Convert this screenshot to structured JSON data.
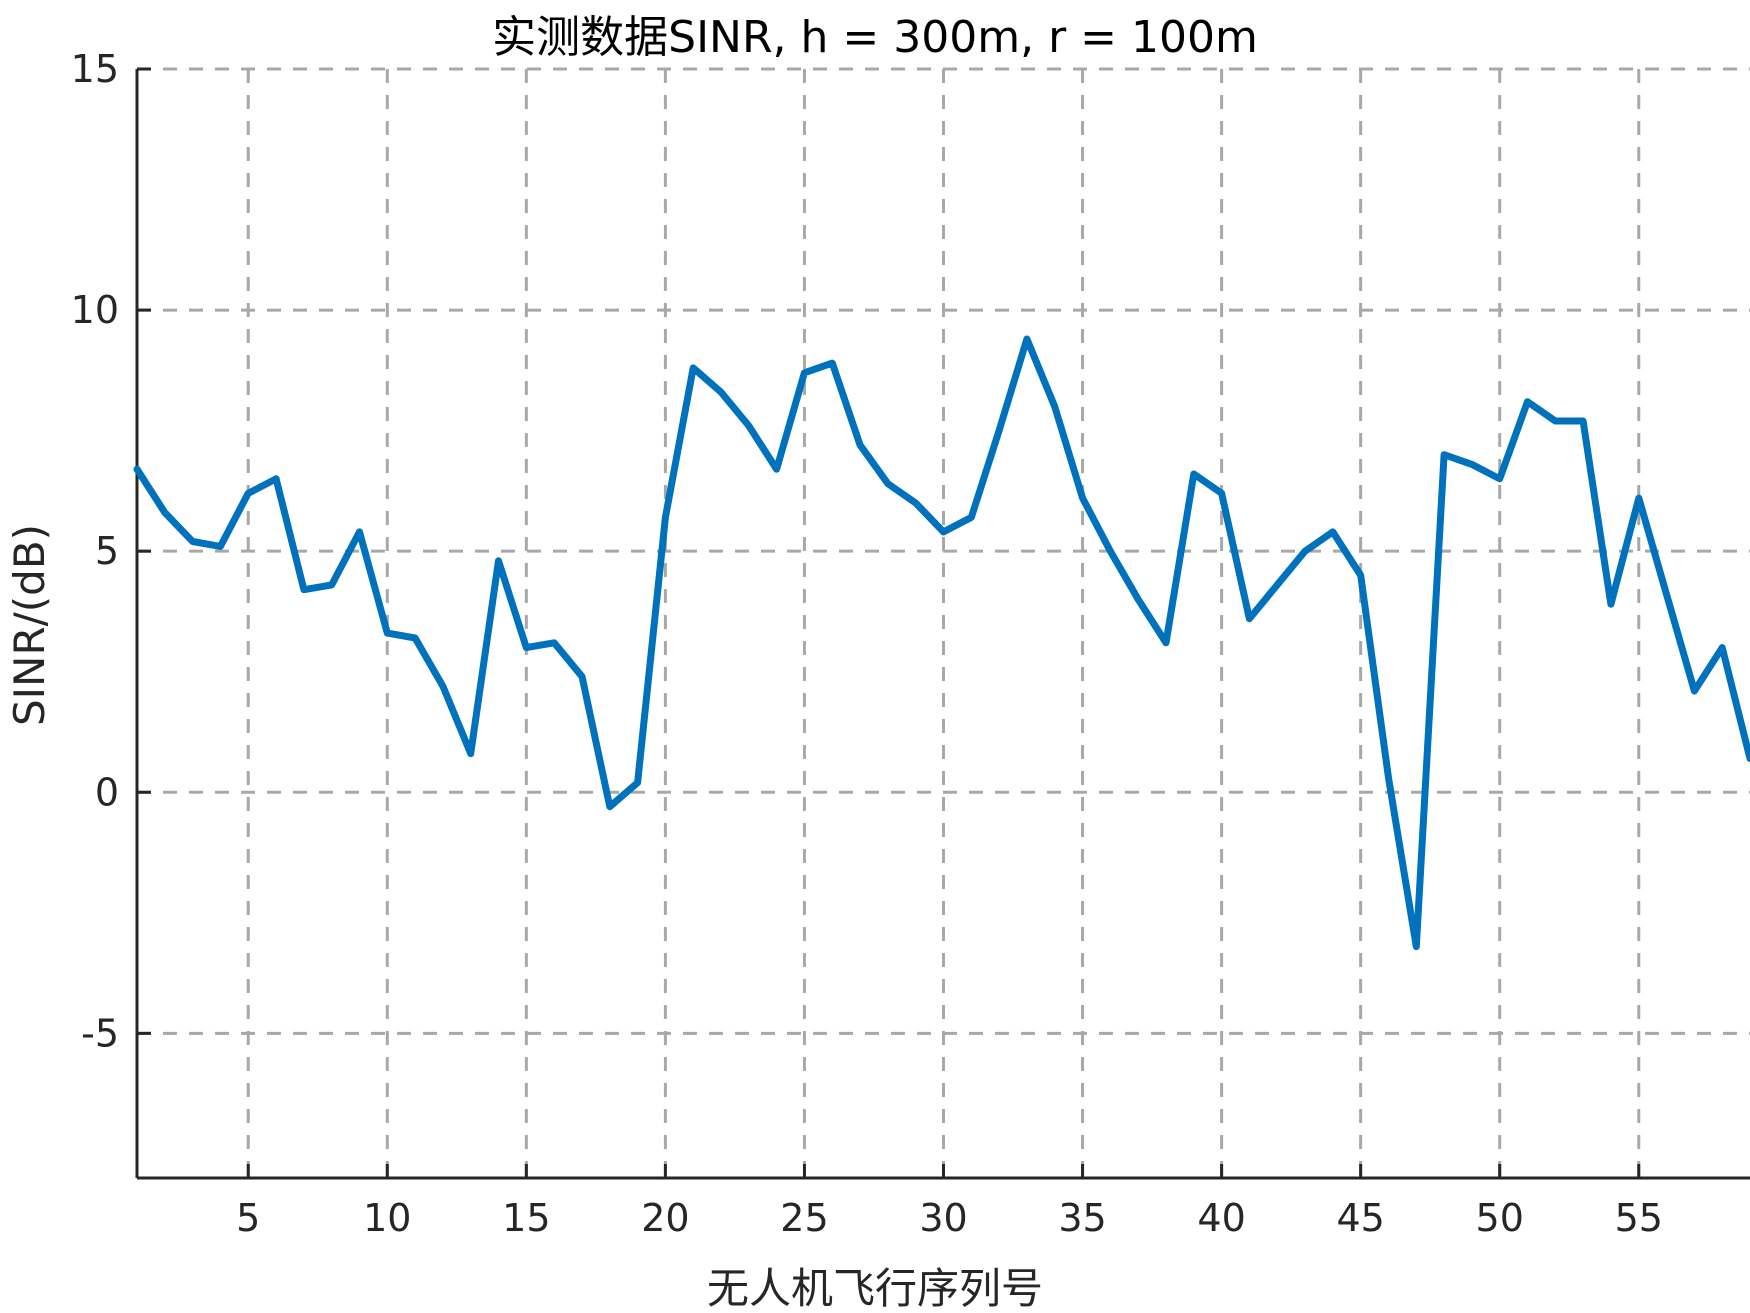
{
  "chart_data": {
    "type": "line",
    "title": "实测数据SINR, h = 300m, r = 100m",
    "xlabel": "无人机飞行序列号",
    "ylabel": "SINR/(dB)",
    "xlim": [
      1,
      59
    ],
    "ylim": [
      -8,
      15
    ],
    "xticks": [
      5,
      10,
      15,
      20,
      25,
      30,
      35,
      40,
      45,
      50,
      55
    ],
    "yticks": [
      -5,
      0,
      5,
      10,
      15
    ],
    "grid": true,
    "legend": "none",
    "series": [
      {
        "color": "#0072BD",
        "x": [
          1,
          2,
          3,
          4,
          5,
          6,
          7,
          8,
          9,
          10,
          11,
          12,
          13,
          14,
          15,
          16,
          17,
          18,
          19,
          20,
          21,
          22,
          23,
          24,
          25,
          26,
          27,
          28,
          29,
          30,
          31,
          32,
          33,
          34,
          35,
          36,
          37,
          38,
          39,
          40,
          41,
          42,
          43,
          44,
          45,
          46,
          47,
          48,
          49,
          50,
          51,
          52,
          53,
          54,
          55,
          56,
          57,
          58,
          59
        ],
        "y": [
          6.7,
          5.8,
          5.2,
          5.1,
          6.2,
          6.5,
          4.2,
          4.3,
          5.4,
          3.3,
          3.2,
          2.2,
          0.8,
          4.8,
          3.0,
          3.1,
          2.4,
          -0.3,
          0.2,
          5.7,
          8.8,
          8.3,
          7.6,
          6.7,
          8.7,
          8.9,
          7.2,
          6.4,
          6.0,
          5.4,
          5.7,
          7.5,
          9.4,
          8.0,
          6.1,
          5.0,
          4.0,
          3.1,
          6.6,
          6.2,
          3.6,
          4.3,
          5.0,
          5.4,
          4.5,
          0.3,
          -3.2,
          7.0,
          6.8,
          6.5,
          8.1,
          7.7,
          7.7,
          3.9,
          6.1,
          4.1,
          2.1,
          3.0,
          0.7
        ]
      }
    ]
  }
}
